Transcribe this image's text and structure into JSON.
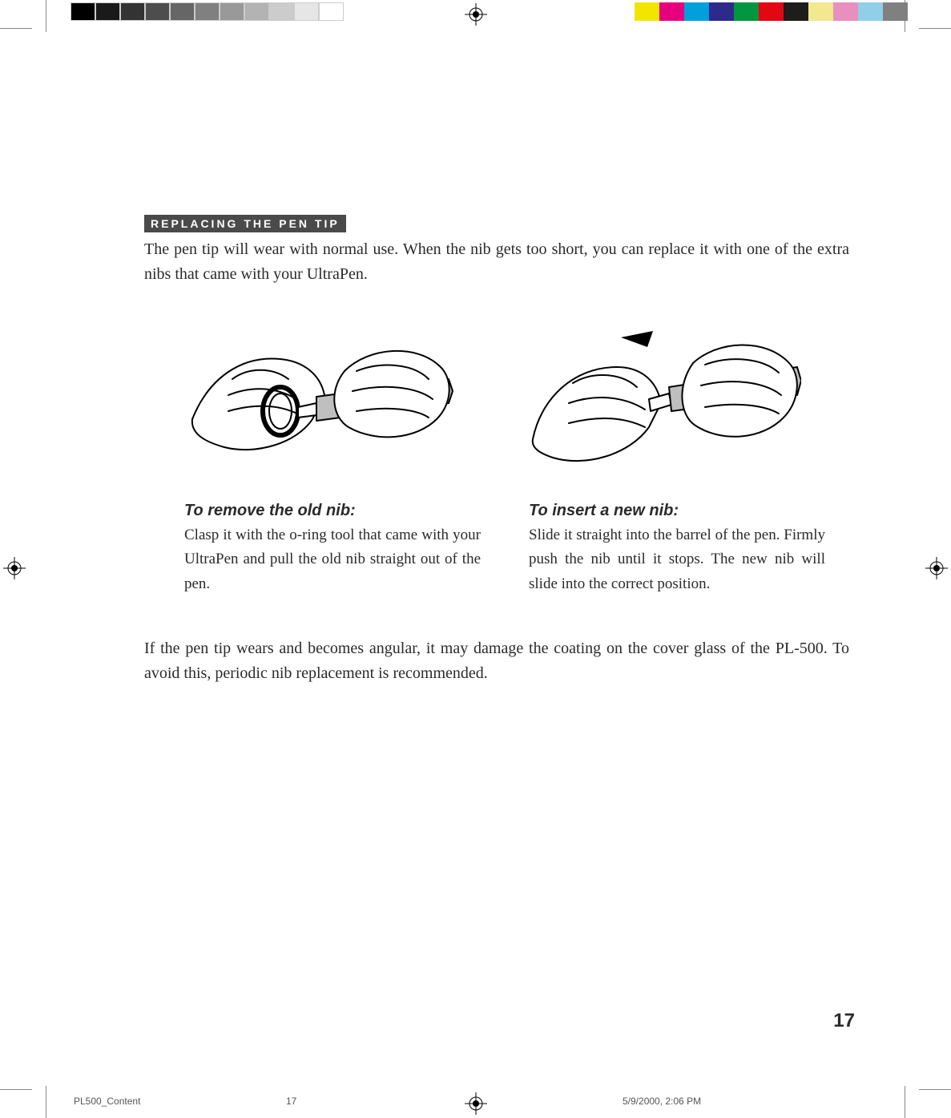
{
  "printer_marks": {
    "grayscale_bar": [
      "#000000",
      "#1a1a1a",
      "#333333",
      "#4d4d4d",
      "#666666",
      "#808080",
      "#999999",
      "#b3b3b3",
      "#cccccc",
      "#e6e6e6",
      "#ffffff"
    ],
    "color_bar": [
      "#f2e600",
      "#e6007e",
      "#00a0dc",
      "#2d2a8c",
      "#009640",
      "#e30613",
      "#1d1d1b",
      "#f2e88f",
      "#e88fc0",
      "#8fd0e8",
      "#808080"
    ],
    "grayscale_border": "#cccccc"
  },
  "section_title": "REPLACING THE PEN TIP",
  "section_title_bg": "#4a4a4a",
  "section_title_color": "#ffffff",
  "intro": "The pen tip will wear with normal use.  When the nib gets too short, you can replace it with one of the extra nibs that came with your UltraPen.",
  "left": {
    "heading": "To remove the old nib:",
    "body": "Clasp it with the o-ring tool that came with your UltraPen and pull the old nib straight out of the pen."
  },
  "right": {
    "heading": "To insert a new nib:",
    "body": "Slide it straight into the barrel of the pen.  Firmly push the nib until it stops.  The new nib will slide into the correct position."
  },
  "closing": "If the pen tip wears and becomes angular, it may damage the coating on the cover glass of the PL-500.  To avoid this, periodic nib replacement is recommended.",
  "page_number": "17",
  "footer": {
    "file": "PL500_Content",
    "page": "17",
    "date": "5/9/2000, 2:06 PM"
  },
  "typography": {
    "body_font": "Georgia, Times, serif",
    "heading_font": "Arial, Helvetica, sans-serif",
    "body_size_pt": 15,
    "body_color": "#2a2a2a"
  },
  "illustration": {
    "stroke": "#000000",
    "fill": "#ffffff",
    "pen_shade": "#bfbfbf"
  }
}
